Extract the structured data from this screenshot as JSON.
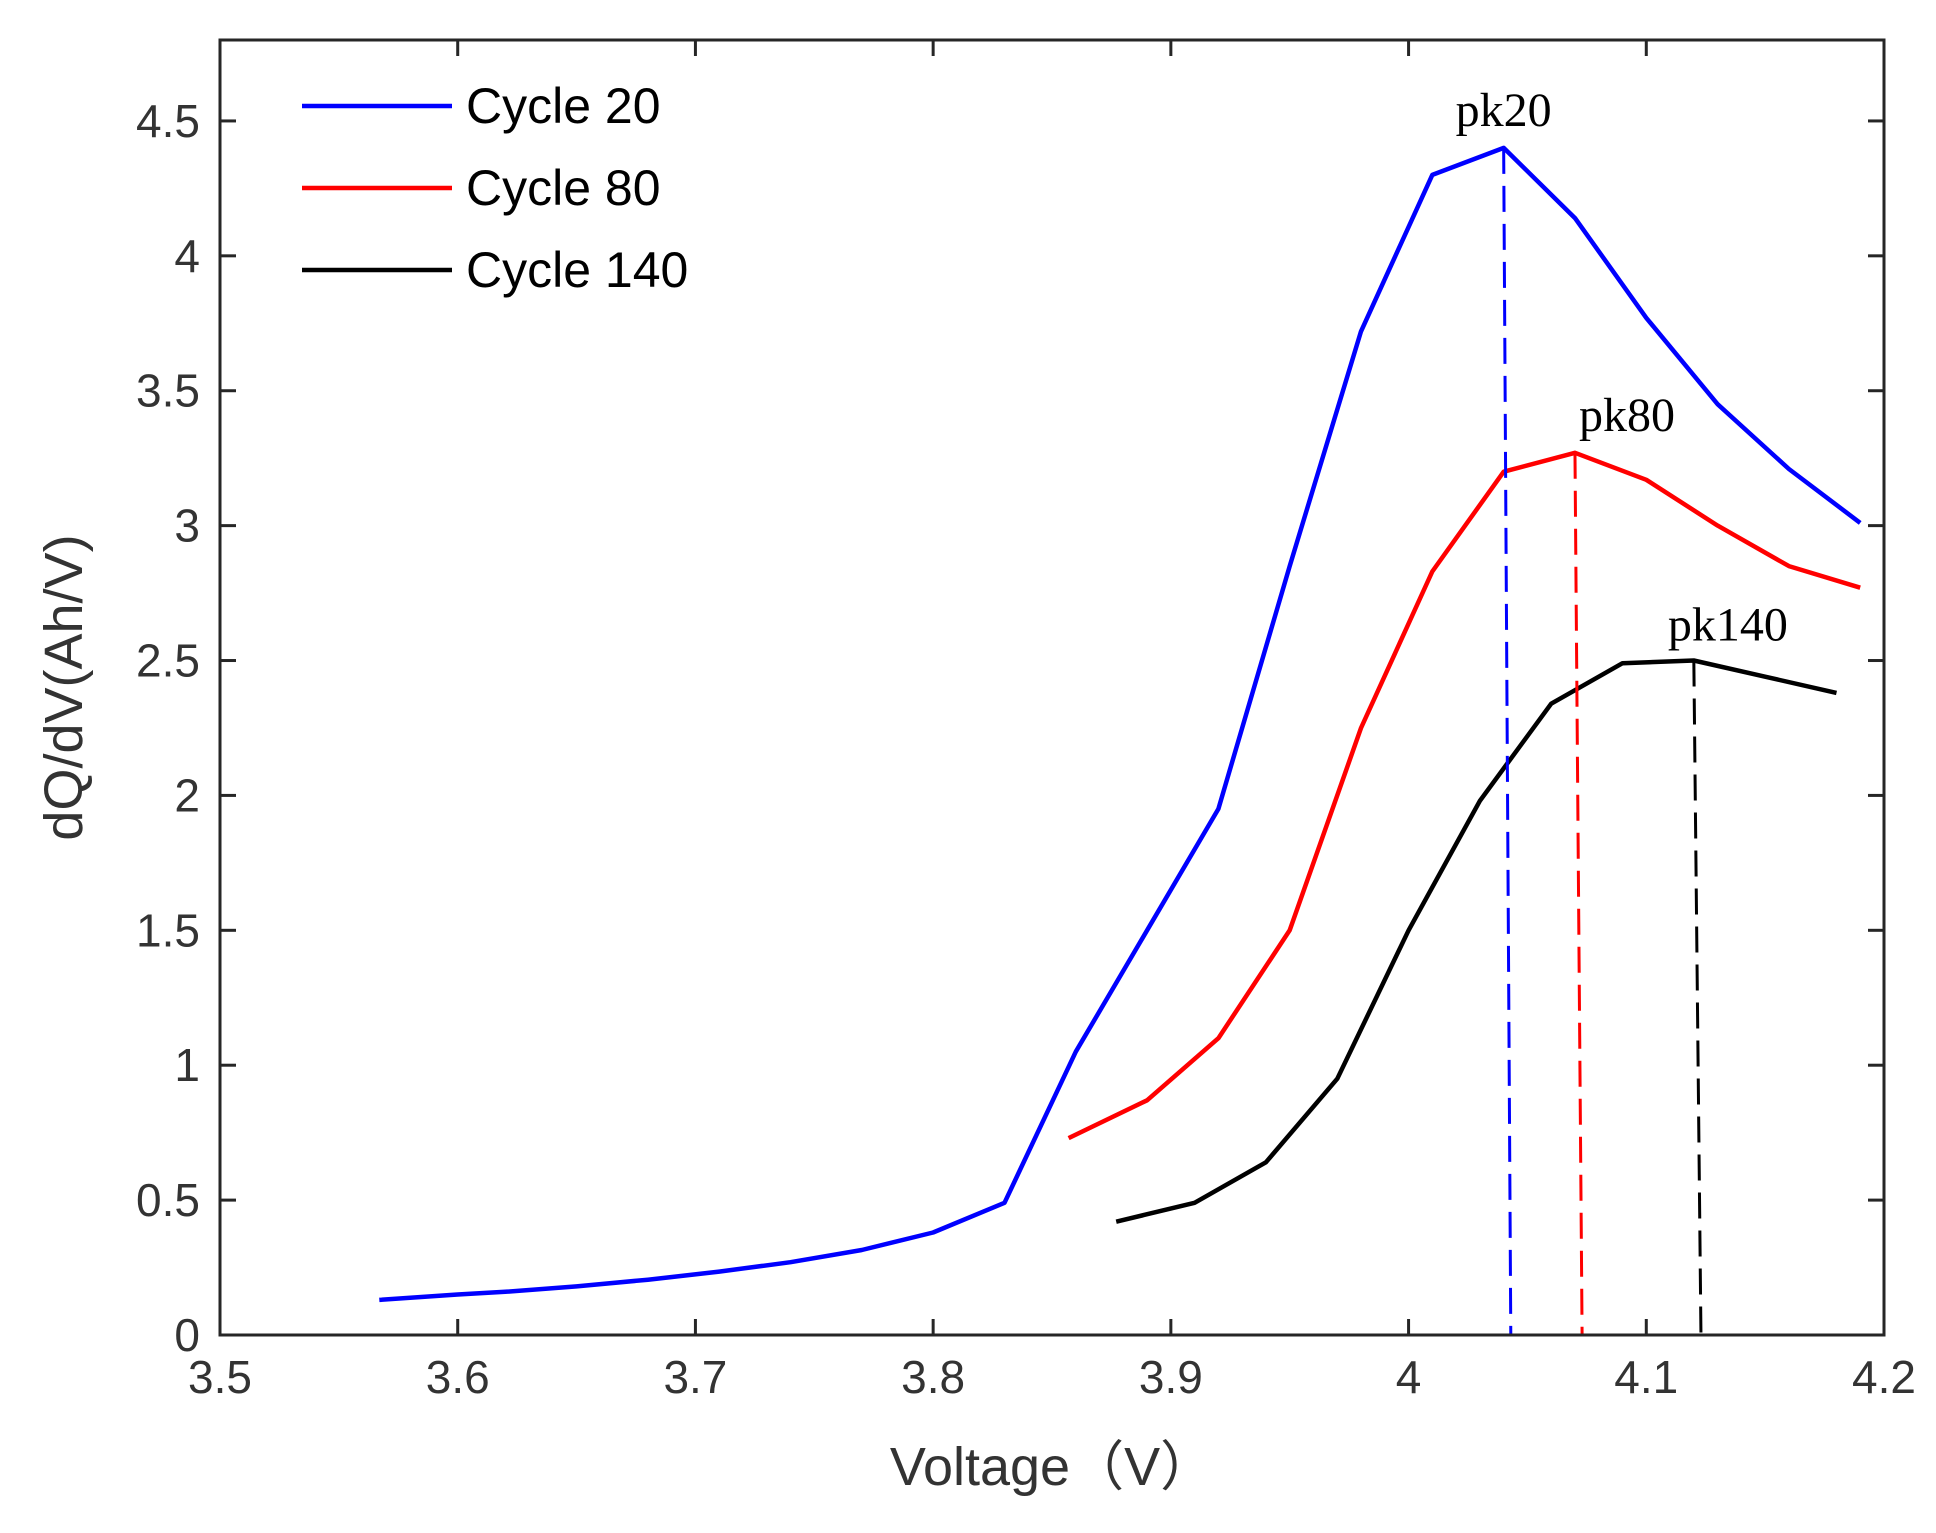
{
  "chart_data": {
    "type": "line",
    "title": "",
    "xlabel": "Voltage（V）",
    "ylabel": "dQ/dV(Ah/V)",
    "xlim": [
      3.5,
      4.2
    ],
    "ylim": [
      0,
      4.8
    ],
    "x_ticks": [
      3.5,
      3.6,
      3.7,
      3.8,
      3.9,
      4.0,
      4.1,
      4.2
    ],
    "x_tick_labels": [
      "3.5",
      "3.6",
      "3.7",
      "3.8",
      "3.9",
      "4",
      "4.1",
      "4.2"
    ],
    "y_ticks": [
      0,
      0.5,
      1,
      1.5,
      2,
      2.5,
      3,
      3.5,
      4,
      4.5
    ],
    "y_tick_labels": [
      "0",
      "0.5",
      "1",
      "1.5",
      "2",
      "2.5",
      "3",
      "3.5",
      "4",
      "4.5"
    ],
    "grid": false,
    "legend_position": "top-left",
    "series": [
      {
        "name": "Cycle 20",
        "color": "#0000ff",
        "x": [
          3.567,
          3.6,
          3.62,
          3.65,
          3.68,
          3.71,
          3.74,
          3.77,
          3.8,
          3.83,
          3.86,
          3.89,
          3.92,
          3.95,
          3.98,
          4.01,
          4.04,
          4.07,
          4.1,
          4.13,
          4.16,
          4.19
        ],
        "y": [
          0.13,
          0.15,
          0.16,
          0.18,
          0.205,
          0.235,
          0.27,
          0.315,
          0.38,
          0.49,
          1.05,
          1.5,
          1.95,
          2.85,
          3.72,
          4.3,
          4.4,
          4.14,
          3.77,
          3.45,
          3.21,
          3.01
        ]
      },
      {
        "name": "Cycle 80",
        "color": "#ff0000",
        "x": [
          3.857,
          3.89,
          3.92,
          3.95,
          3.98,
          4.01,
          4.04,
          4.07,
          4.1,
          4.13,
          4.16,
          4.19
        ],
        "y": [
          0.73,
          0.87,
          1.1,
          1.5,
          2.25,
          2.83,
          3.2,
          3.27,
          3.17,
          3.0,
          2.85,
          2.77
        ]
      },
      {
        "name": "Cycle 140",
        "color": "#000000",
        "x": [
          3.877,
          3.91,
          3.94,
          3.97,
          4.0,
          4.03,
          4.06,
          4.09,
          4.12,
          4.15,
          4.18
        ],
        "y": [
          0.42,
          0.49,
          0.64,
          0.95,
          1.5,
          1.98,
          2.34,
          2.49,
          2.5,
          2.44,
          2.38
        ]
      }
    ],
    "peak_markers": [
      {
        "label": "pk20",
        "color": "#0000ff",
        "x_top": 4.04,
        "x_bottom": 4.043,
        "y": 4.4
      },
      {
        "label": "pk80",
        "color": "#ff0000",
        "x_top": 4.07,
        "x_bottom": 4.073,
        "y": 3.27
      },
      {
        "label": "pk140",
        "color": "#000000",
        "x_top": 4.12,
        "x_bottom": 4.123,
        "y": 2.5
      }
    ]
  }
}
